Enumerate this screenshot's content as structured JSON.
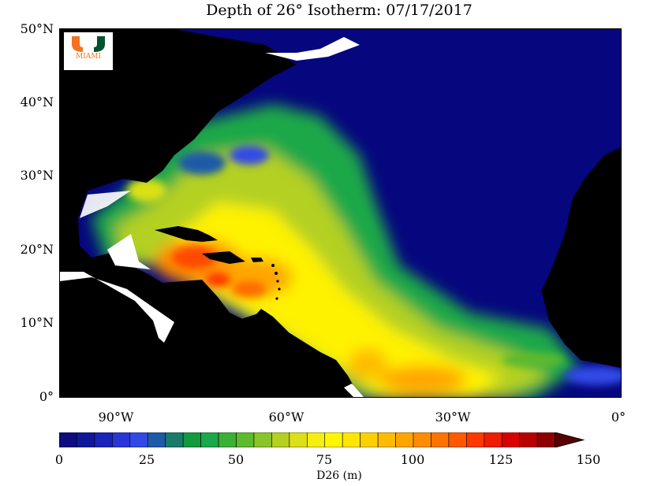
{
  "title": "Depth of 26° Isotherm: 07/17/2017",
  "logo": {
    "name": "MIAMI"
  },
  "y_axis": {
    "ticks": [
      "50°N",
      "40°N",
      "30°N",
      "20°N",
      "10°N",
      "0°"
    ]
  },
  "x_axis": {
    "ticks": [
      "90°W",
      "60°W",
      "30°W",
      "0°"
    ]
  },
  "colorbar": {
    "ticks": [
      "0",
      "25",
      "50",
      "75",
      "100",
      "125",
      "150"
    ],
    "label": "D26 (m)",
    "colors": [
      "#0d0d80",
      "#10189a",
      "#1a24b8",
      "#2a35d8",
      "#3349e6",
      "#1f5aa8",
      "#1a7a6b",
      "#129a3c",
      "#1aa84a",
      "#3bb035",
      "#5cba2e",
      "#8ac42a",
      "#b4d020",
      "#dbe018",
      "#f5ee10",
      "#fff600",
      "#ffe600",
      "#ffd000",
      "#ffbb00",
      "#ffa500",
      "#ff8c00",
      "#ff7300",
      "#ff5a00",
      "#ff3800",
      "#ee1c00",
      "#d80000",
      "#b80000",
      "#8e0000"
    ]
  },
  "colors": {
    "land": "#000000",
    "ocean_shallow": "#06067e",
    "background": "#ffffff"
  }
}
